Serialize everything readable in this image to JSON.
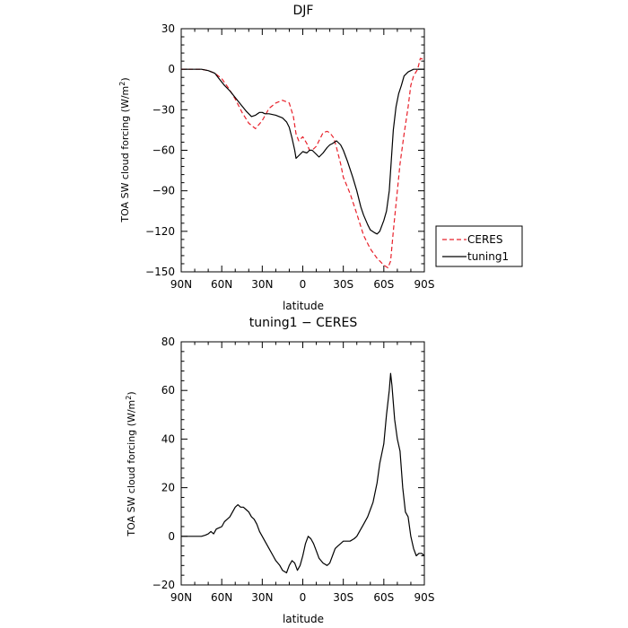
{
  "chart_data": [
    {
      "type": "line",
      "title": "DJF",
      "xlabel": "latitude",
      "ylabel": "TOA SW cloud forcing (W/m",
      "ylabel_sup": "2",
      "ylabel_end": ")",
      "xlim": [
        -90,
        90
      ],
      "ylim": [
        -150,
        30
      ],
      "xticks": [
        -90,
        -60,
        -30,
        0,
        30,
        60,
        90
      ],
      "xtick_labels": [
        "90N",
        "60N",
        "30N",
        "0",
        "30S",
        "60S",
        "90S"
      ],
      "yticks": [
        -150,
        -120,
        -90,
        -60,
        -30,
        0,
        30
      ],
      "ytick_labels": [
        "−150",
        "−120",
        "−90",
        "−60",
        "−30",
        "0",
        "30"
      ],
      "legend": "right",
      "series": [
        {
          "name": "CERES",
          "color": "#e8202a",
          "dash": "dashed",
          "x": [
            -90,
            -75,
            -70,
            -65,
            -60,
            -55,
            -50,
            -45,
            -40,
            -35,
            -30,
            -25,
            -20,
            -15,
            -10,
            -7,
            -5,
            -3,
            0,
            3,
            5,
            8,
            10,
            13,
            15,
            18,
            20,
            23,
            25,
            28,
            30,
            35,
            40,
            45,
            50,
            55,
            60,
            63,
            65,
            67,
            70,
            72,
            75,
            78,
            80,
            82,
            85,
            87,
            90
          ],
          "y": [
            0,
            0,
            -1,
            -3,
            -7,
            -14,
            -22,
            -32,
            -40,
            -44,
            -38,
            -29,
            -25,
            -23,
            -25,
            -35,
            -48,
            -53,
            -50,
            -55,
            -60,
            -59,
            -57,
            -51,
            -47,
            -46,
            -47,
            -51,
            -58,
            -70,
            -80,
            -92,
            -107,
            -123,
            -133,
            -140,
            -145,
            -147,
            -142,
            -120,
            -90,
            -70,
            -48,
            -28,
            -12,
            -5,
            0,
            8,
            7
          ]
        },
        {
          "name": "tuning1",
          "color": "#000000",
          "dash": "solid",
          "x": [
            -90,
            -75,
            -70,
            -65,
            -62,
            -58,
            -54,
            -50,
            -46,
            -42,
            -38,
            -35,
            -32,
            -30,
            -28,
            -25,
            -20,
            -15,
            -12,
            -10,
            -8,
            -6,
            -5,
            -3,
            0,
            3,
            5,
            7,
            10,
            12,
            15,
            18,
            20,
            22,
            25,
            28,
            30,
            33,
            37,
            40,
            43,
            45,
            48,
            50,
            53,
            55,
            57,
            60,
            62,
            64,
            65,
            66,
            67,
            69,
            71,
            73,
            75,
            78,
            80,
            82,
            85,
            87,
            90
          ],
          "y": [
            0,
            0,
            -1,
            -3,
            -7,
            -12,
            -16,
            -21,
            -26,
            -31,
            -35,
            -34,
            -32,
            -32,
            -33,
            -33,
            -34,
            -36,
            -39,
            -43,
            -51,
            -60,
            -66,
            -64,
            -61,
            -62,
            -60,
            -60,
            -63,
            -65,
            -62,
            -58,
            -56,
            -55,
            -53,
            -56,
            -60,
            -68,
            -80,
            -90,
            -102,
            -108,
            -115,
            -119,
            -121,
            -122,
            -120,
            -112,
            -105,
            -90,
            -75,
            -60,
            -45,
            -28,
            -18,
            -12,
            -5,
            -2,
            -1,
            0,
            0,
            0,
            0
          ]
        }
      ]
    },
    {
      "type": "line",
      "title": "tuning1 − CERES",
      "xlabel": "latitude",
      "ylabel": "TOA SW cloud forcing (W/m",
      "ylabel_sup": "2",
      "ylabel_end": ")",
      "xlim": [
        -90,
        90
      ],
      "ylim": [
        -20,
        80
      ],
      "xticks": [
        -90,
        -60,
        -30,
        0,
        30,
        60,
        90
      ],
      "xtick_labels": [
        "90N",
        "60N",
        "30N",
        "0",
        "30S",
        "60S",
        "90S"
      ],
      "yticks": [
        -20,
        0,
        20,
        40,
        60,
        80
      ],
      "ytick_labels": [
        "−20",
        "0",
        "20",
        "40",
        "60",
        "80"
      ],
      "series": [
        {
          "name": "",
          "color": "#000000",
          "dash": "solid",
          "x": [
            -90,
            -80,
            -75,
            -72,
            -70,
            -68,
            -66,
            -64,
            -62,
            -60,
            -58,
            -56,
            -54,
            -52,
            -50,
            -48,
            -46,
            -44,
            -42,
            -40,
            -38,
            -36,
            -34,
            -32,
            -30,
            -28,
            -25,
            -22,
            -20,
            -17,
            -15,
            -12,
            -10,
            -8,
            -6,
            -4,
            -2,
            0,
            2,
            4,
            6,
            8,
            10,
            12,
            15,
            18,
            20,
            22,
            24,
            26,
            28,
            30,
            32,
            35,
            38,
            40,
            42,
            45,
            48,
            50,
            52,
            55,
            57,
            60,
            62,
            64,
            65,
            66,
            67,
            68,
            70,
            72,
            74,
            76,
            78,
            80,
            82,
            84,
            86,
            88,
            90
          ],
          "y": [
            0,
            0,
            0,
            0.5,
            1,
            2,
            1,
            3,
            3.5,
            4,
            6,
            7,
            8,
            10,
            12,
            13,
            12,
            12,
            11,
            10,
            8,
            7,
            5,
            2,
            0,
            -2,
            -5,
            -8,
            -10,
            -12,
            -14,
            -15,
            -12,
            -10,
            -11,
            -14,
            -12,
            -8,
            -3,
            0,
            -1,
            -3,
            -6,
            -9,
            -11,
            -12,
            -11,
            -8,
            -5,
            -4,
            -3,
            -2,
            -2,
            -2,
            -1,
            0,
            2,
            5,
            8,
            11,
            14,
            22,
            30,
            38,
            50,
            60,
            67,
            62,
            55,
            48,
            40,
            35,
            20,
            10,
            8,
            0,
            -5,
            -8,
            -7,
            -7,
            -8
          ]
        }
      ]
    }
  ]
}
